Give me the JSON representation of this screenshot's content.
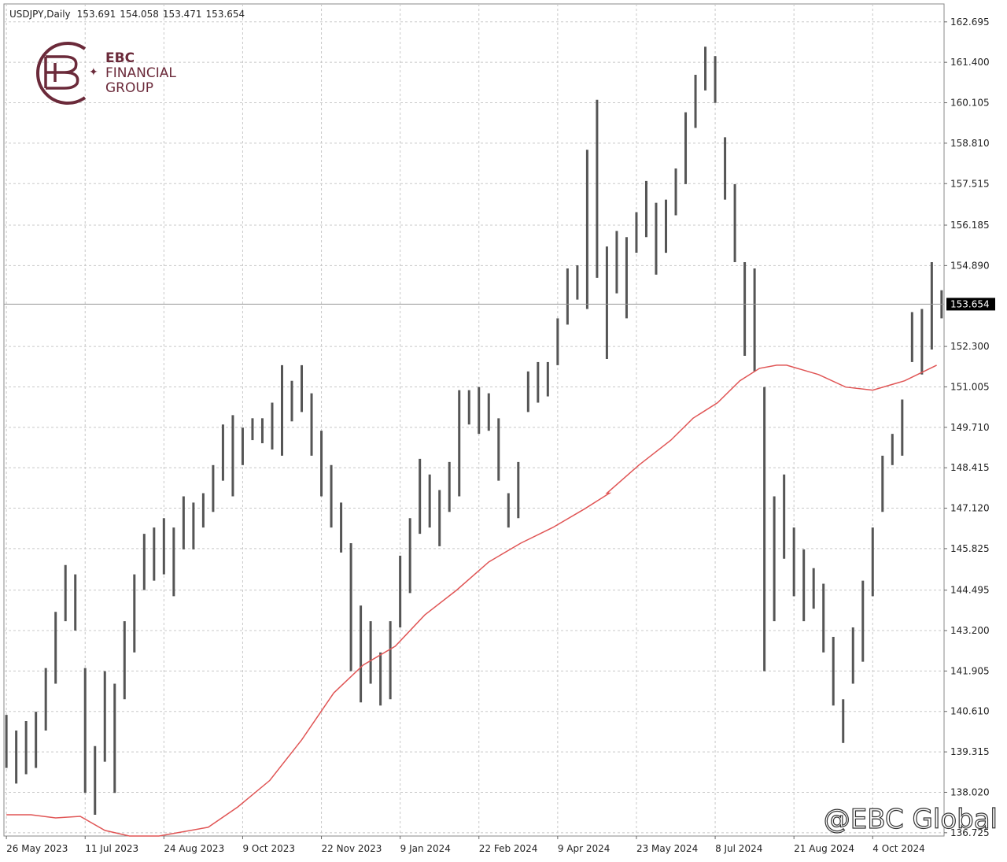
{
  "chart_data": {
    "type": "ohlc",
    "symbol": "USDJPY,Daily",
    "header_ohlc": [
      153.691,
      154.058,
      153.471,
      153.654
    ],
    "x": [
      0,
      4,
      8,
      12,
      16,
      20,
      24,
      28,
      32,
      36,
      40,
      44,
      48,
      52,
      56,
      60,
      64,
      68,
      72,
      76,
      80,
      84,
      88,
      92,
      96,
      100,
      104,
      108,
      112,
      116,
      120,
      124,
      128,
      132,
      136,
      140,
      144,
      148,
      152,
      156,
      160,
      164,
      168,
      172,
      176,
      180,
      184,
      188,
      192,
      196,
      200,
      204,
      208,
      212,
      216,
      220,
      224,
      228,
      232,
      236,
      240,
      244,
      248,
      252,
      256,
      260,
      264,
      268,
      272,
      276,
      280,
      284,
      288,
      292,
      296,
      300,
      304,
      308,
      312,
      316,
      320,
      324,
      328,
      332,
      336,
      340,
      344,
      348,
      352,
      356,
      360,
      364,
      368,
      372,
      376,
      380
    ],
    "high": [
      140.5,
      140.0,
      140.3,
      140.6,
      142.0,
      143.8,
      145.3,
      145.0,
      142.0,
      139.5,
      141.9,
      141.5,
      143.5,
      145.0,
      146.3,
      146.5,
      146.8,
      146.5,
      147.5,
      147.3,
      147.6,
      148.5,
      149.8,
      150.1,
      149.7,
      150.0,
      150.0,
      150.5,
      151.7,
      151.2,
      151.7,
      150.8,
      149.6,
      148.5,
      147.3,
      146.0,
      144.0,
      143.5,
      142.5,
      143.5,
      145.6,
      146.8,
      148.7,
      148.2,
      147.7,
      148.6,
      150.9,
      150.9,
      151.0,
      150.8,
      150.0,
      147.6,
      148.6,
      151.5,
      151.8,
      151.8,
      153.2,
      154.8,
      154.9,
      158.6,
      160.2,
      155.5,
      156.0,
      155.8,
      156.6,
      157.6,
      156.9,
      157.0,
      158.0,
      159.8,
      161.0,
      161.9,
      161.6,
      159.0,
      157.5,
      155.0,
      154.8,
      151.0,
      147.5,
      148.2,
      146.5,
      145.8,
      145.2,
      144.7,
      143.0,
      141.0,
      143.3,
      144.8,
      146.5,
      148.8,
      149.5,
      150.6,
      153.4,
      153.5,
      155.0,
      154.1
    ],
    "low": [
      138.8,
      138.3,
      138.6,
      138.8,
      140.0,
      141.5,
      143.5,
      143.2,
      138.0,
      137.3,
      139.0,
      138.0,
      141.0,
      142.5,
      144.5,
      144.8,
      145.0,
      144.3,
      145.8,
      145.8,
      146.5,
      147.0,
      148.0,
      147.5,
      148.5,
      149.3,
      149.2,
      149.0,
      148.8,
      149.9,
      150.2,
      148.8,
      147.5,
      146.5,
      145.7,
      141.9,
      140.9,
      141.5,
      140.8,
      141.0,
      143.3,
      144.4,
      146.3,
      146.5,
      145.9,
      147.0,
      147.5,
      149.8,
      149.5,
      149.6,
      148.0,
      146.5,
      146.8,
      150.2,
      150.5,
      150.7,
      151.7,
      153.0,
      153.8,
      153.5,
      154.5,
      151.9,
      154.0,
      153.2,
      155.3,
      155.8,
      154.6,
      155.3,
      156.5,
      157.5,
      159.3,
      160.5,
      160.1,
      157.0,
      155.0,
      152.0,
      151.5,
      141.9,
      143.5,
      145.5,
      144.3,
      143.5,
      143.9,
      142.5,
      140.8,
      139.6,
      141.5,
      142.2,
      144.3,
      147.0,
      148.5,
      148.8,
      151.8,
      151.4,
      152.2,
      153.2
    ],
    "color": "#555555",
    "ma": {
      "color": "#e05555",
      "x": [
        0,
        10,
        20,
        30,
        40,
        50,
        62,
        82,
        94,
        107,
        120,
        133,
        145,
        158,
        170,
        183,
        196,
        209,
        222,
        235,
        245,
        244,
        257,
        270,
        279,
        289,
        298,
        306,
        313,
        317,
        330,
        341,
        352,
        365,
        378
      ],
      "values": [
        137.3,
        137.3,
        137.2,
        137.25,
        136.8,
        136.62,
        136.62,
        136.9,
        137.55,
        138.4,
        139.7,
        141.2,
        142.1,
        142.7,
        143.7,
        144.5,
        145.4,
        146.0,
        146.5,
        147.1,
        147.6,
        147.6,
        148.5,
        149.3,
        150.0,
        150.5,
        151.2,
        151.6,
        151.7,
        151.7,
        151.4,
        151.0,
        150.9,
        151.2,
        151.7
      ]
    },
    "current_price": 153.654,
    "xlim": [
      -1,
      381
    ],
    "ylim": [
      136.62,
      163.27
    ],
    "xticks": [
      {
        "value": 0,
        "label": "26 May 2023"
      },
      {
        "value": 32,
        "label": "11 Jul 2023"
      },
      {
        "value": 64,
        "label": "24 Aug 2023"
      },
      {
        "value": 96,
        "label": "9 Oct 2023"
      },
      {
        "value": 128,
        "label": "22 Nov 2023"
      },
      {
        "value": 160,
        "label": "9 Jan 2024"
      },
      {
        "value": 192,
        "label": "22 Feb 2024"
      },
      {
        "value": 224,
        "label": "9 Apr 2024"
      },
      {
        "value": 256,
        "label": "23 May 2024"
      },
      {
        "value": 288,
        "label": "8 Jul 2024"
      },
      {
        "value": 320,
        "label": "21 Aug 2024"
      },
      {
        "value": 352,
        "label": "4 Oct 2024"
      }
    ],
    "yticks": [
      162.695,
      {
        "value": 161.4,
        "label": "161.400"
      },
      160.105,
      {
        "value": 158.81,
        "label": "158.810"
      },
      157.515,
      156.185,
      {
        "value": 154.89,
        "label": "154.890"
      },
      {
        "value": 152.3,
        "label": "152.300"
      },
      151.005,
      {
        "value": 149.71,
        "label": "149.710"
      },
      148.415,
      {
        "value": 147.12,
        "label": "147.120"
      },
      145.825,
      144.495,
      {
        "value": 143.2,
        "label": "143.200"
      },
      141.905,
      {
        "value": 140.61,
        "label": "140.610"
      },
      139.315,
      {
        "value": 138.02,
        "label": "138.020"
      },
      136.725
    ],
    "grid": true
  },
  "logo": {
    "lines": [
      "EBC",
      "FINANCIAL",
      "GROUP"
    ]
  },
  "watermark": "@EBC Global"
}
